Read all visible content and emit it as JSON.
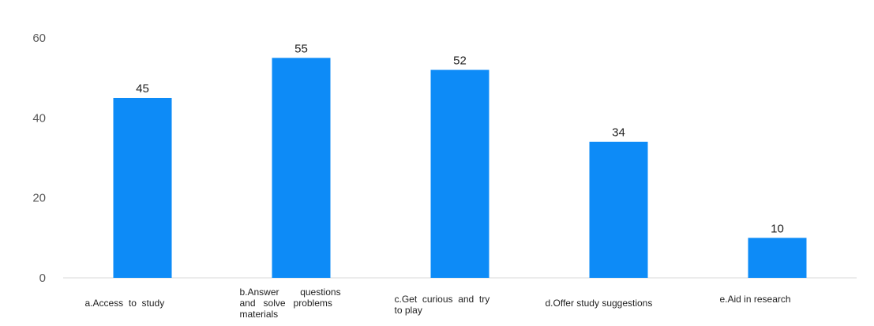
{
  "chart_data": {
    "type": "bar",
    "categories": [
      "a.Access to study",
      "b.Answer questions and solve problems materials",
      "c.Get curious and try to play",
      "d.Offer study suggestions",
      "e.Aid in research"
    ],
    "category_lines": [
      [
        "a.Access  to  study"
      ],
      [
        "b.Answer        questions",
        "and   solve   problems",
        "materials"
      ],
      [
        "c.Get  curious  and  try",
        "to play"
      ],
      [
        "d.Offer study suggestions"
      ],
      [
        "e.Aid in research"
      ]
    ],
    "values": [
      45,
      55,
      52,
      34,
      10
    ],
    "ylim": [
      0,
      60
    ],
    "yticks": [
      0,
      20,
      40,
      60
    ],
    "bar_color": "#0d8bf7",
    "axis_color": "#d9d9d9",
    "title": "",
    "xlabel": "",
    "ylabel": "",
    "gridlines": false
  }
}
